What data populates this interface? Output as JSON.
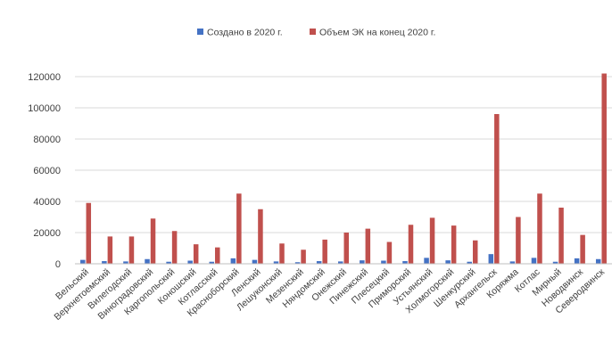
{
  "chart_data": {
    "type": "bar",
    "categories": [
      "Вельский",
      "Верхнетоемский",
      "Вилегодский",
      "Виноградовский",
      "Каргопольский",
      "Коношский",
      "Котласский",
      "Красноборский",
      "Ленский",
      "Лешуконский",
      "Мезенский",
      "Няндомский",
      "Онежский",
      "Пинежский",
      "Плесецкий",
      "Приморский",
      "Устьянский",
      "Холмогорский",
      "Шенкурский",
      "Архангельск",
      "Коряжма",
      "Котлас",
      "Мирный",
      "Новодвинск",
      "Северодвинск"
    ],
    "series": [
      {
        "name": "Создано в 2020 г.",
        "color": "#4472C4",
        "values": [
          2500,
          1700,
          1500,
          3000,
          1300,
          2000,
          1300,
          3500,
          2500,
          1500,
          1000,
          1700,
          1500,
          2200,
          2000,
          1700,
          3800,
          2200,
          1300,
          6200,
          1500,
          3800,
          1300,
          3500,
          3000
        ]
      },
      {
        "name": "Объем ЭК на конец 2020 г.",
        "color": "#C0504D",
        "values": [
          39000,
          17500,
          17500,
          29000,
          21000,
          12500,
          10500,
          45000,
          35000,
          13000,
          9000,
          15500,
          20000,
          22500,
          14000,
          25000,
          29500,
          24500,
          15000,
          96000,
          30000,
          45000,
          36000,
          18500,
          122000
        ]
      }
    ],
    "y_ticks": [
      "0",
      "20000",
      "40000",
      "60000",
      "80000",
      "100000",
      "120000"
    ],
    "ylim": [
      0,
      120000
    ],
    "grid": true,
    "legend_position": "top"
  }
}
